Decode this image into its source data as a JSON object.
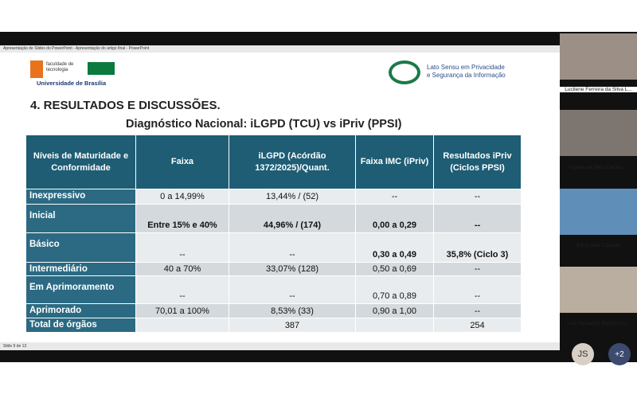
{
  "window": {
    "title": "Apresentação de Slides do PowerPoint - Apresentação do artigo final - PowerPoint",
    "status": "Slide 9 de 13"
  },
  "slide": {
    "logo_left": {
      "line1": "faculdade de",
      "line2": "tecnologia",
      "line3": "Universidade de Brasília"
    },
    "logo_right": {
      "line1": "Lato Sensu em Privacidade",
      "line2": "e Segurança da Informação"
    },
    "heading": "4. RESULTADOS E DISCUSSÕES.",
    "table_title": "Diagnóstico Nacional: iLGPD (TCU) vs iPriv (PPSI)",
    "table": {
      "header": [
        "Níveis de Maturidade e Conformidade",
        "Faixa",
        "iLGPD (Acórdão 1372/2025)/Quant.",
        "Faixa IMC (iPriv)",
        "Resultados iPriv (Ciclos PPSI)"
      ],
      "rows": [
        [
          "Inexpressivo",
          "0 a 14,99%",
          "13,44% / (52)",
          "--",
          "--"
        ],
        [
          "Inicial",
          "Entre 15% e 40%",
          "44,96% / (174)",
          "0,00 a 0,29",
          "--"
        ],
        [
          "Básico",
          "--",
          "--",
          "0,30 a 0,49",
          "35,8% (Ciclo 3)"
        ],
        [
          "Intermediário",
          "40 a 70%",
          "33,07% (128)",
          "0,50 a 0,69",
          "--"
        ],
        [
          "Em Aprimoramento",
          "--",
          "--",
          "0,70 a 0,89",
          "--"
        ],
        [
          "Aprimorado",
          "70,01 a 100%",
          "8,53% (33)",
          "0,90 a 1,00",
          "--"
        ],
        [
          "Total de órgãos",
          "",
          "387",
          "",
          "254"
        ]
      ]
    }
  },
  "participants": [
    "Lucilene Ferreira da Silva L...",
    "Virgínia de Melo Dantas ...",
    "Edna Dias Canedo",
    "Luiz Fernando Bastos Co..."
  ],
  "avatars": [
    "JS",
    "+2"
  ]
}
